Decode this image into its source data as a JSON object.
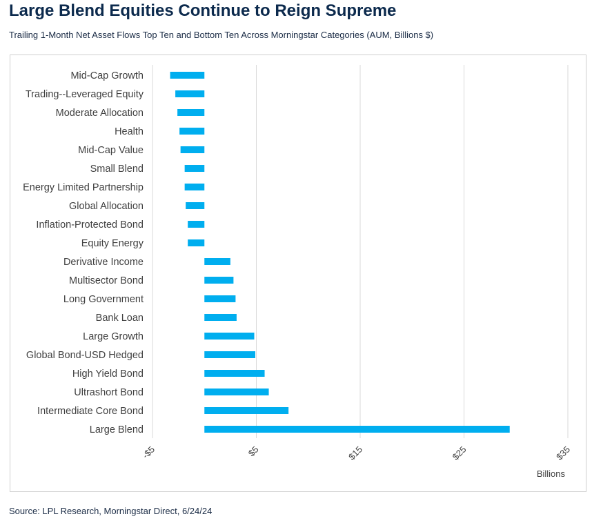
{
  "header": {
    "title": "Large Blend Equities Continue to Reign Supreme",
    "subtitle": "Trailing 1-Month Net Asset Flows Top Ten and Bottom Ten Across Morningstar Categories (AUM, Billions $)"
  },
  "footer": {
    "source": "Source: LPL Research, Morningstar Direct, 6/24/24"
  },
  "colors": {
    "bar": "#00aeef",
    "grid": "#d9d9d9",
    "text": "#404040",
    "title": "#0c2a4d"
  },
  "chart_data": {
    "type": "bar",
    "orientation": "horizontal",
    "title": "",
    "xlabel": "",
    "ylabel": "",
    "unit_label": "Billions",
    "xlim": [
      -5,
      35
    ],
    "grid": true,
    "legend": "none",
    "tick_labels": [
      "-$5",
      "$5",
      "$15",
      "$25",
      "$35"
    ],
    "tick_values": [
      -5,
      5,
      15,
      25,
      35
    ],
    "categories": [
      "Mid-Cap Growth",
      "Trading--Leveraged Equity",
      "Moderate Allocation",
      "Health",
      "Mid-Cap Value",
      "Small Blend",
      "Energy Limited Partnership",
      "Global Allocation",
      "Inflation-Protected Bond",
      "Equity Energy",
      "Derivative Income",
      "Multisector Bond",
      "Long Government",
      "Bank Loan",
      "Large Growth",
      "Global Bond-USD Hedged",
      "High Yield Bond",
      "Ultrashort Bond",
      "Intermediate Core Bond",
      "Large Blend"
    ],
    "values": [
      -3.3,
      -2.8,
      -2.6,
      -2.4,
      -2.3,
      -1.9,
      -1.9,
      -1.8,
      -1.6,
      -1.6,
      2.5,
      2.8,
      3.0,
      3.1,
      4.8,
      4.9,
      5.8,
      6.2,
      8.1,
      29.4
    ]
  }
}
